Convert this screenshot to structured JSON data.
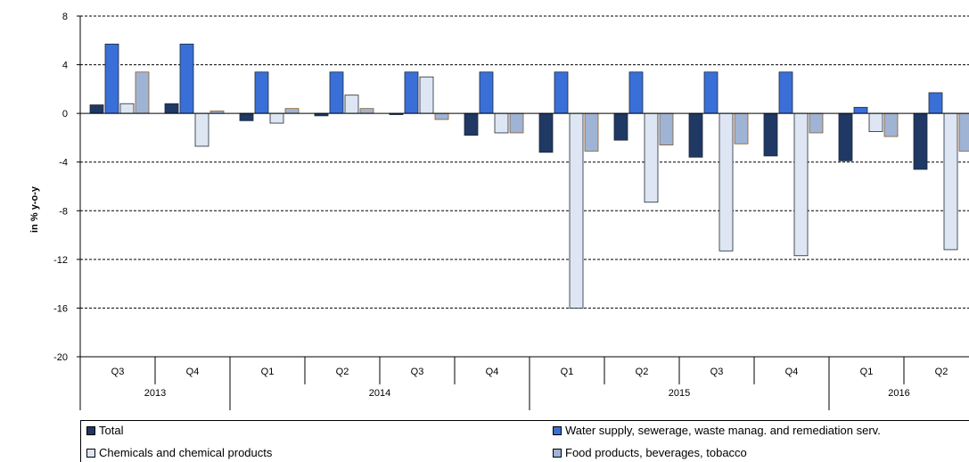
{
  "chart_data": {
    "type": "bar",
    "ylabel": "in % y-o-y",
    "ylim": [
      -20,
      8
    ],
    "yticks": [
      8,
      4,
      0,
      -4,
      -8,
      -12,
      -16,
      -20
    ],
    "grid": true,
    "legend_placement": "bottom",
    "quarters": [
      "Q3",
      "Q4",
      "Q1",
      "Q2",
      "Q3",
      "Q4",
      "Q1",
      "Q2",
      "Q3",
      "Q4",
      "Q1",
      "Q2"
    ],
    "years": [
      {
        "label": "2013",
        "span": 2
      },
      {
        "label": "2014",
        "span": 4
      },
      {
        "label": "2015",
        "span": 4
      },
      {
        "label": "2016",
        "span": 2
      }
    ],
    "series": [
      {
        "name": "Total",
        "color": "#1f3864",
        "values": [
          0.7,
          0.8,
          -0.6,
          -0.2,
          -0.1,
          -1.8,
          -3.2,
          -2.2,
          -3.6,
          -3.5,
          -3.9,
          -4.6
        ]
      },
      {
        "name": "Water supply, sewerage, waste manag. and remediation serv.",
        "color": "#3a6fd8",
        "values": [
          5.7,
          5.7,
          3.4,
          3.4,
          3.4,
          3.4,
          3.4,
          3.4,
          3.4,
          3.4,
          0.5,
          1.7
        ]
      },
      {
        "name": "Chemicals and chemical products",
        "color": "#dde6f2",
        "values": [
          0.8,
          -2.7,
          -0.8,
          1.5,
          3.0,
          -1.6,
          -16.0,
          -7.3,
          -11.3,
          -11.7,
          -1.5,
          -11.2
        ]
      },
      {
        "name": "Food products, beverages, tobacco",
        "color": "#9fb4d4",
        "values": [
          3.4,
          0.2,
          0.4,
          0.4,
          -0.5,
          -1.6,
          -3.1,
          -2.6,
          -2.5,
          -1.6,
          -1.9,
          -3.1
        ]
      }
    ]
  }
}
